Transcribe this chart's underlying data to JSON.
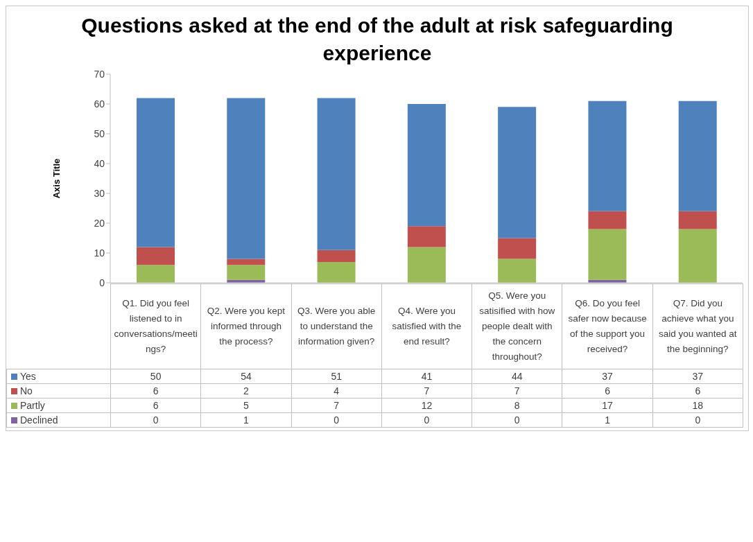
{
  "chart_data": {
    "type": "bar",
    "title": "Questions asked at the end of the adult at risk safeguarding experience",
    "ylabel": "Axis Title",
    "categories": [
      "Q1. Did you feel listened to in conversations/meetings?",
      "Q2. Were you kept informed through the process?",
      "Q3. Were you able to understand the information given?",
      "Q4. Were you satisfied with the end result?",
      "Q5. Were you satisified with how people dealt with the concern throughout?",
      "Q6. Do you feel safer now because of the support you received?",
      "Q7. Did you achieve what you said you wanted at the beginning?"
    ],
    "series": [
      {
        "name": "Declined",
        "color": "#8064a2",
        "values": [
          0,
          1,
          0,
          0,
          0,
          1,
          0
        ]
      },
      {
        "name": "Partly",
        "color": "#9bbb59",
        "values": [
          6,
          5,
          7,
          12,
          8,
          17,
          18
        ]
      },
      {
        "name": "No",
        "color": "#c0504d",
        "values": [
          6,
          2,
          4,
          7,
          7,
          6,
          6
        ]
      },
      {
        "name": "Yes",
        "color": "#4f81bd",
        "values": [
          50,
          54,
          51,
          41,
          44,
          37,
          37
        ]
      }
    ],
    "stacked": true,
    "ylim": [
      0,
      70
    ],
    "yticks": [
      0,
      10,
      20,
      30,
      40,
      50,
      60,
      70
    ],
    "data_labels": true,
    "legend": "bottom"
  }
}
